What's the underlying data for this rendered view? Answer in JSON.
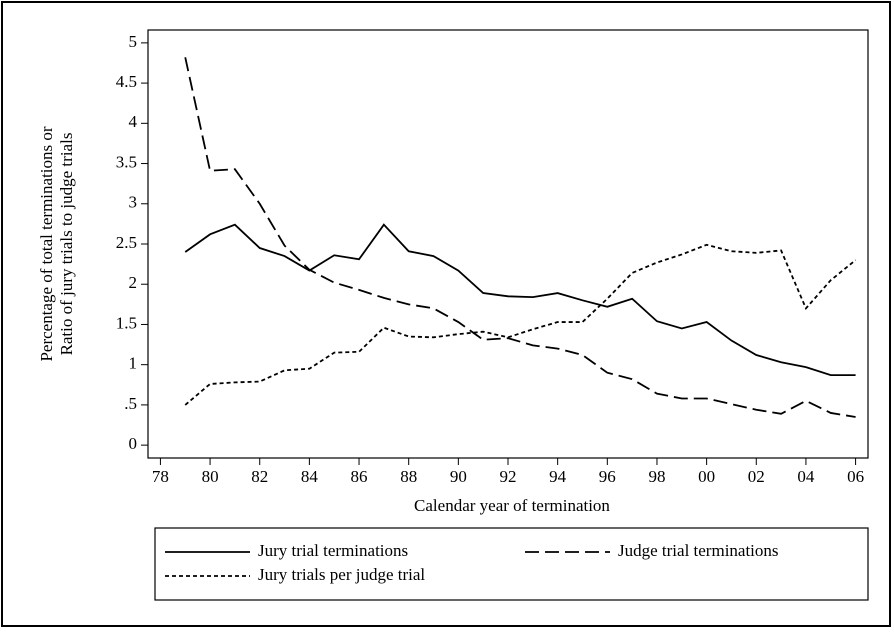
{
  "chart_data": {
    "type": "line",
    "xlabel": "Calendar year of termination",
    "ylabel": [
      "Percentage of total terminations or",
      "Ratio of jury trials to judge trials"
    ],
    "x": [
      1979,
      1980,
      1981,
      1982,
      1983,
      1984,
      1985,
      1986,
      1987,
      1988,
      1989,
      1990,
      1991,
      1992,
      1993,
      1994,
      1995,
      1996,
      1997,
      1998,
      1999,
      2000,
      2001,
      2002,
      2003,
      2004,
      2005,
      2006
    ],
    "series": [
      {
        "name": "Jury trial terminations",
        "color": "#000000",
        "dash": "solid",
        "values": [
          2.4,
          2.62,
          2.74,
          2.45,
          2.35,
          2.17,
          2.36,
          2.31,
          2.74,
          2.41,
          2.35,
          2.17,
          1.89,
          1.85,
          1.84,
          1.89,
          1.8,
          1.72,
          1.82,
          1.54,
          1.45,
          1.53,
          1.3,
          1.12,
          1.03,
          0.97,
          0.87,
          0.87
        ]
      },
      {
        "name": "Judge trial terminations",
        "color": "#000000",
        "dash": "dashed",
        "values": [
          4.82,
          3.41,
          3.43,
          3.0,
          2.48,
          2.18,
          2.02,
          1.93,
          1.83,
          1.75,
          1.7,
          1.53,
          1.31,
          1.33,
          1.24,
          1.2,
          1.12,
          0.9,
          0.82,
          0.64,
          0.58,
          0.58,
          0.51,
          0.44,
          0.39,
          0.55,
          0.4,
          0.35
        ]
      },
      {
        "name": "Jury trials per judge trial",
        "color": "#000000",
        "dash": "dotted",
        "values": [
          0.5,
          0.76,
          0.78,
          0.79,
          0.93,
          0.95,
          1.15,
          1.16,
          1.46,
          1.35,
          1.34,
          1.38,
          1.41,
          1.34,
          1.44,
          1.53,
          1.53,
          1.82,
          2.14,
          2.27,
          2.37,
          2.49,
          2.41,
          2.39,
          2.42,
          1.7,
          2.05,
          2.3
        ]
      }
    ],
    "xlim": [
      1977.5,
      2006.5
    ],
    "xticks": [
      {
        "value": 1978,
        "label": "78"
      },
      {
        "value": 1980,
        "label": "80"
      },
      {
        "value": 1982,
        "label": "82"
      },
      {
        "value": 1984,
        "label": "84"
      },
      {
        "value": 1986,
        "label": "86"
      },
      {
        "value": 1988,
        "label": "88"
      },
      {
        "value": 1990,
        "label": "90"
      },
      {
        "value": 1992,
        "label": "92"
      },
      {
        "value": 1994,
        "label": "94"
      },
      {
        "value": 1996,
        "label": "96"
      },
      {
        "value": 1998,
        "label": "98"
      },
      {
        "value": 2000,
        "label": "00"
      },
      {
        "value": 2002,
        "label": "02"
      },
      {
        "value": 2004,
        "label": "04"
      },
      {
        "value": 2006,
        "label": "06"
      }
    ],
    "ylim": [
      -0.16,
      5.16
    ],
    "yticks": [
      0,
      {
        "value": 0.5,
        "label": ".5"
      },
      1,
      1.5,
      2,
      2.5,
      3,
      3.5,
      4,
      4.5,
      5
    ],
    "grid": false
  }
}
